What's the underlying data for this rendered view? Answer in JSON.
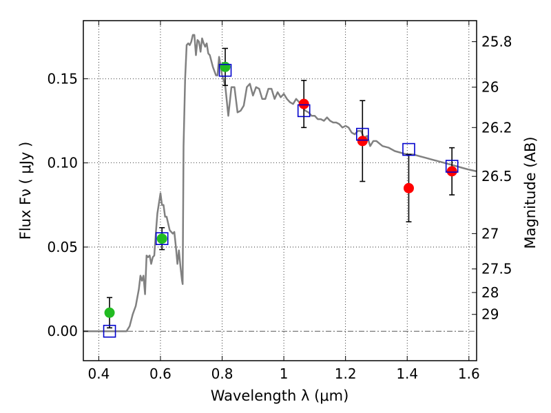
{
  "chart_data": {
    "type": "scatter",
    "xlabel": "Wavelength  λ (μm)",
    "ylabel": "Flux  Fν  ( μJy )",
    "y2label": "Magnitude (AB)",
    "xlim": [
      0.35,
      1.625
    ],
    "ylim": [
      -0.0175,
      0.1845
    ],
    "grid": true,
    "xticks": [
      0.4,
      0.6,
      0.8,
      1.0,
      1.2,
      1.4,
      1.6
    ],
    "xtick_labels": [
      "0.4",
      "0.6",
      "0.8",
      "1",
      "1.2",
      "1.4",
      "1.6"
    ],
    "yticks": [
      0.0,
      0.05,
      0.1,
      0.15
    ],
    "ytick_labels": [
      "0.00",
      "0.05",
      "0.10",
      "0.15"
    ],
    "y2ticks": [
      {
        "label": "25.8",
        "flux": 0.172
      },
      {
        "label": "26",
        "flux": 0.145
      },
      {
        "label": "26.2",
        "flux": 0.121
      },
      {
        "label": "26.5",
        "flux": 0.092
      },
      {
        "label": "27",
        "flux": 0.058
      },
      {
        "label": "27.5",
        "flux": 0.037
      },
      {
        "label": "28",
        "flux": 0.023
      },
      {
        "label": "29",
        "flux": 0.01
      }
    ],
    "series": [
      {
        "kind": "line",
        "color": "#808080",
        "x": [
          0.35,
          0.49,
          0.5,
          0.51,
          0.52,
          0.53,
          0.535,
          0.54,
          0.545,
          0.55,
          0.555,
          0.56,
          0.565,
          0.57,
          0.575,
          0.58,
          0.585,
          0.59,
          0.6,
          0.605,
          0.61,
          0.615,
          0.62,
          0.63,
          0.64,
          0.645,
          0.65,
          0.655,
          0.66,
          0.665,
          0.67,
          0.672,
          0.675,
          0.68,
          0.685,
          0.69,
          0.695,
          0.7,
          0.705,
          0.71,
          0.715,
          0.72,
          0.725,
          0.73,
          0.735,
          0.74,
          0.745,
          0.75,
          0.755,
          0.76,
          0.77,
          0.78,
          0.785,
          0.79,
          0.8,
          0.81,
          0.82,
          0.83,
          0.84,
          0.85,
          0.86,
          0.87,
          0.88,
          0.89,
          0.9,
          0.91,
          0.92,
          0.93,
          0.94,
          0.95,
          0.96,
          0.97,
          0.98,
          0.99,
          1.0,
          1.01,
          1.02,
          1.03,
          1.04,
          1.05,
          1.06,
          1.07,
          1.08,
          1.09,
          1.1,
          1.11,
          1.12,
          1.13,
          1.14,
          1.15,
          1.16,
          1.17,
          1.18,
          1.19,
          1.2,
          1.21,
          1.22,
          1.23,
          1.24,
          1.25,
          1.26,
          1.27,
          1.28,
          1.29,
          1.3,
          1.32,
          1.34,
          1.36,
          1.38,
          1.4,
          1.42,
          1.44,
          1.46,
          1.48,
          1.5,
          1.52,
          1.54,
          1.56,
          1.58,
          1.6,
          1.625
        ],
        "y": [
          0.0,
          0.0,
          0.003,
          0.01,
          0.015,
          0.025,
          0.033,
          0.03,
          0.033,
          0.022,
          0.045,
          0.044,
          0.045,
          0.04,
          0.044,
          0.045,
          0.058,
          0.07,
          0.082,
          0.075,
          0.075,
          0.068,
          0.068,
          0.06,
          0.058,
          0.059,
          0.05,
          0.04,
          0.048,
          0.038,
          0.03,
          0.028,
          0.11,
          0.15,
          0.17,
          0.171,
          0.17,
          0.172,
          0.176,
          0.176,
          0.164,
          0.173,
          0.172,
          0.166,
          0.174,
          0.171,
          0.169,
          0.171,
          0.165,
          0.164,
          0.157,
          0.152,
          0.152,
          0.163,
          0.152,
          0.146,
          0.128,
          0.145,
          0.145,
          0.13,
          0.131,
          0.134,
          0.145,
          0.147,
          0.14,
          0.145,
          0.144,
          0.138,
          0.138,
          0.144,
          0.144,
          0.138,
          0.142,
          0.139,
          0.141,
          0.138,
          0.136,
          0.135,
          0.138,
          0.136,
          0.133,
          0.131,
          0.13,
          0.128,
          0.128,
          0.126,
          0.126,
          0.125,
          0.127,
          0.125,
          0.124,
          0.124,
          0.123,
          0.121,
          0.122,
          0.121,
          0.118,
          0.117,
          0.119,
          0.119,
          0.115,
          0.116,
          0.11,
          0.113,
          0.113,
          0.11,
          0.109,
          0.107,
          0.106,
          0.105,
          0.105,
          0.104,
          0.103,
          0.102,
          0.101,
          0.1,
          0.099,
          0.098,
          0.097,
          0.096,
          0.095
        ]
      },
      {
        "kind": "error_points",
        "color": "#22bb22",
        "x": [
          0.435,
          0.605,
          0.81
        ],
        "y": [
          0.011,
          0.055,
          0.157
        ],
        "yerr": [
          0.009,
          0.0065,
          0.011
        ]
      },
      {
        "kind": "error_points",
        "color": "#ff0000",
        "x": [
          1.065,
          1.255,
          1.405,
          1.545
        ],
        "y": [
          0.135,
          0.113,
          0.085,
          0.095
        ],
        "yerr": [
          0.014,
          0.024,
          0.02,
          0.014
        ]
      },
      {
        "kind": "open_squares",
        "color": "#0000cc",
        "x": [
          0.435,
          0.605,
          0.81,
          1.065,
          1.255,
          1.405,
          1.545
        ],
        "y": [
          0.0,
          0.055,
          0.155,
          0.131,
          0.117,
          0.108,
          0.098
        ]
      }
    ]
  }
}
